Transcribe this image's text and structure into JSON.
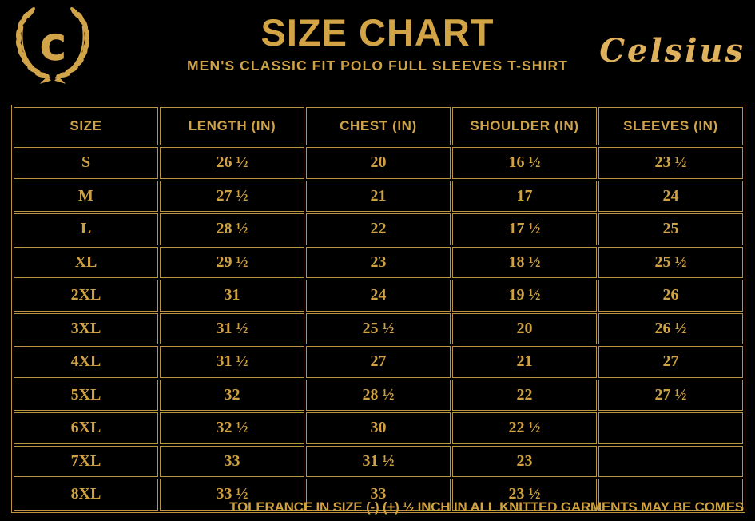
{
  "colors": {
    "background": "#000000",
    "gold_title": "#d2a445",
    "gold_text": "#cfa142",
    "gold_border": "#bb9440",
    "gold_script": "#e0b15c"
  },
  "header": {
    "logo_letter": "C",
    "title": "SIZE CHART",
    "subtitle": "MEN'S CLASSIC FIT POLO FULL SLEEVES T-SHIRT",
    "brand": "Celsius"
  },
  "chart_data": {
    "type": "table",
    "title": "SIZE CHART",
    "subtitle": "MEN'S CLASSIC FIT POLO FULL SLEEVES T-SHIRT",
    "columns": [
      "SIZE",
      "LENGTH (IN)",
      "CHEST (IN)",
      "SHOULDER (IN)",
      "SLEEVES (IN)"
    ],
    "rows": [
      [
        "S",
        "26 ½",
        "20",
        "16 ½",
        "23 ½"
      ],
      [
        "M",
        "27 ½",
        "21",
        "17",
        "24"
      ],
      [
        "L",
        "28 ½",
        "22",
        "17 ½",
        "25"
      ],
      [
        "XL",
        "29 ½",
        "23",
        "18 ½",
        "25 ½"
      ],
      [
        "2XL",
        "31",
        "24",
        "19 ½",
        "26"
      ],
      [
        "3XL",
        "31 ½",
        "25 ½",
        "20",
        "26 ½"
      ],
      [
        "4XL",
        "31 ½",
        "27",
        "21",
        "27"
      ],
      [
        "5XL",
        "32",
        "28 ½",
        "22",
        "27 ½"
      ],
      [
        "6XL",
        "32 ½",
        "30",
        "22 ½",
        ""
      ],
      [
        "7XL",
        "33",
        "31 ½",
        "23",
        ""
      ],
      [
        "8XL",
        "33 ½",
        "33",
        "23 ½",
        ""
      ]
    ]
  },
  "footer": {
    "note": "TOLERANCE IN SIZE (-) (+)  ½ INCH IN ALL KNITTED GARMENTS MAY BE COMES"
  }
}
